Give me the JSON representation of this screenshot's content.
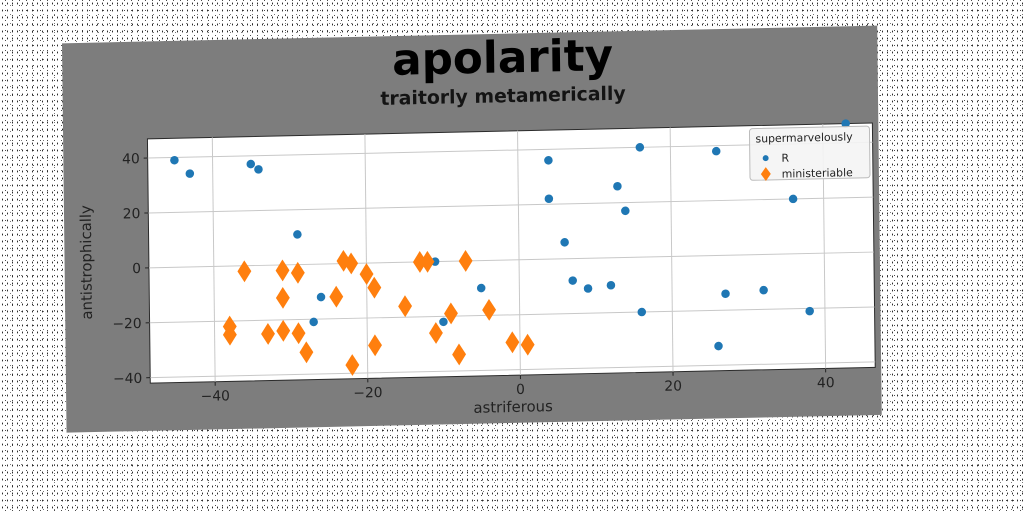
{
  "chart_data": {
    "type": "scatter",
    "title": "apolarity",
    "subtitle": "traitorly metamerically",
    "xlabel": "astriferous",
    "ylabel": "antistrophically",
    "xlim": [
      -48.5,
      46.5
    ],
    "ylim": [
      -42,
      47
    ],
    "xticks": [
      -40,
      -20,
      0,
      20,
      40
    ],
    "yticks": [
      -40,
      -20,
      0,
      20,
      40
    ],
    "grid": true,
    "legend": {
      "title": "supermarvelously",
      "placement": "top-right"
    },
    "series": [
      {
        "name": "R",
        "marker": "circle",
        "color": "#1f77b4",
        "points": [
          [
            -45,
            39
          ],
          [
            -43,
            34
          ],
          [
            -35,
            37
          ],
          [
            -34,
            35
          ],
          [
            -29,
            11
          ],
          [
            -26,
            -12
          ],
          [
            -27,
            -21
          ],
          [
            -11,
            0
          ],
          [
            -10,
            -22
          ],
          [
            -5,
            -10
          ],
          [
            4,
            36
          ],
          [
            4,
            22
          ],
          [
            6,
            6
          ],
          [
            7,
            -8
          ],
          [
            9,
            -11
          ],
          [
            12,
            -10
          ],
          [
            13,
            26
          ],
          [
            14,
            17
          ],
          [
            16,
            40
          ],
          [
            16,
            -20
          ],
          [
            26,
            38
          ],
          [
            26,
            -33
          ],
          [
            27,
            -14
          ],
          [
            32,
            -13
          ],
          [
            36,
            20
          ],
          [
            38,
            -21
          ],
          [
            43,
            47
          ]
        ]
      },
      {
        "name": "ministeriable",
        "marker": "diamond",
        "color": "#ff7f0e",
        "points": [
          [
            -36,
            -2
          ],
          [
            -38,
            -22
          ],
          [
            -38,
            -25
          ],
          [
            -33,
            -25
          ],
          [
            -31,
            -24
          ],
          [
            -31,
            -12
          ],
          [
            -31,
            -2
          ],
          [
            -29,
            -3
          ],
          [
            -29,
            -25
          ],
          [
            -28,
            -32
          ],
          [
            -24,
            -12
          ],
          [
            -23,
            1
          ],
          [
            -22,
            0
          ],
          [
            -22,
            -37
          ],
          [
            -20,
            -4
          ],
          [
            -19,
            -9
          ],
          [
            -19,
            -30
          ],
          [
            -15,
            -16
          ],
          [
            -13,
            0
          ],
          [
            -12,
            0
          ],
          [
            -11,
            -26
          ],
          [
            -9,
            -19
          ],
          [
            -8,
            -34
          ],
          [
            -7,
            0
          ],
          [
            -4,
            -18
          ],
          [
            -1,
            -30
          ],
          [
            1,
            -31
          ]
        ]
      }
    ]
  }
}
